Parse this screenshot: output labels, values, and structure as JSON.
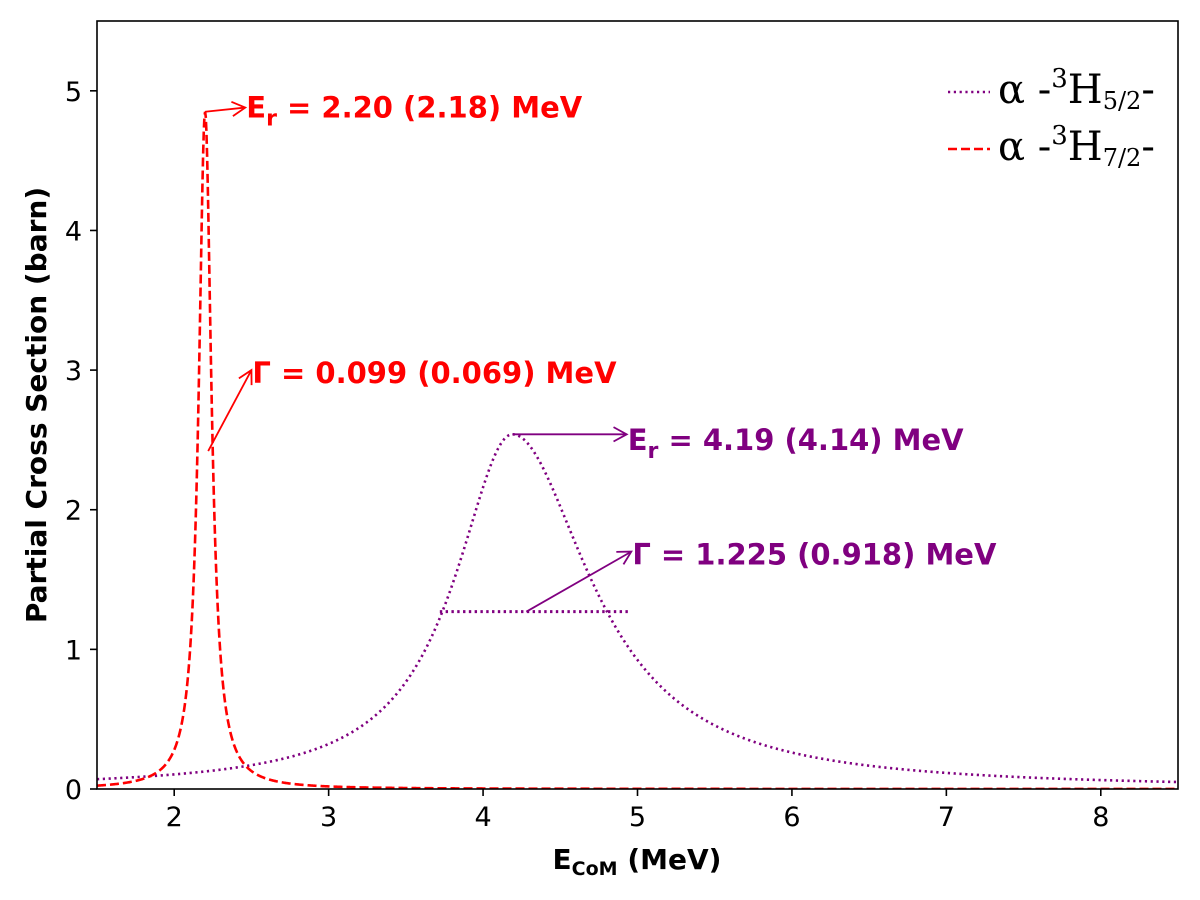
{
  "chart_data": {
    "type": "line",
    "xlabel_main": "E",
    "xlabel_sub": "CoM",
    "xlabel_unit": " (MeV)",
    "ylabel": "Partial Cross Section (barn)",
    "xlim": [
      1.5,
      8.5
    ],
    "ylim": [
      0,
      5.5
    ],
    "xticks": [
      2,
      3,
      4,
      5,
      6,
      7,
      8
    ],
    "yticks": [
      0,
      1,
      2,
      3,
      4,
      5
    ],
    "grid": false,
    "legend_position": "top-right",
    "series": [
      {
        "name": "α-3H5/2-",
        "legend": {
          "pre": "α -",
          "sup": "3",
          "base": "H",
          "sub": "5/2",
          "post": "-"
        },
        "color": "#800080",
        "style": "dotted",
        "model": "resonance",
        "peak_energy": 4.19,
        "peak_value": 2.54,
        "width": 1.225,
        "asymmetry": 1.35
      },
      {
        "name": "α-3H7/2-",
        "legend": {
          "pre": "α -",
          "sup": "3",
          "base": "H",
          "sub": "7/2",
          "post": "-"
        },
        "color": "#ff0000",
        "style": "dashed",
        "model": "resonance",
        "peak_energy": 2.2,
        "peak_value": 4.85,
        "width": 0.099,
        "asymmetry": 1.0
      }
    ],
    "half_max_line": {
      "x": [
        3.72,
        4.95
      ],
      "y": 1.27,
      "color": "#800080"
    },
    "annotations": [
      {
        "id": "er-red",
        "color": "#ff0000",
        "main": "E",
        "sub": "r",
        "text": " = 2.20 (2.18) MeV",
        "text_at": [
          2.46,
          4.88
        ],
        "arrow_from": [
          2.2,
          4.85
        ],
        "arrow_to": [
          2.46,
          4.88
        ]
      },
      {
        "id": "gamma-red",
        "color": "#ff0000",
        "main": "Γ",
        "sub": "",
        "text": " = 0.099 (0.069) MeV",
        "text_at": [
          2.5,
          2.98
        ],
        "arrow_from": [
          2.22,
          2.42
        ],
        "arrow_to": [
          2.5,
          3.0
        ]
      },
      {
        "id": "er-purple",
        "color": "#800080",
        "main": "E",
        "sub": "r",
        "text": " = 4.19 (4.14) MeV",
        "text_at": [
          4.93,
          2.5
        ],
        "arrow_from": [
          4.19,
          2.54
        ],
        "arrow_to": [
          4.93,
          2.54
        ]
      },
      {
        "id": "gamma-purple",
        "color": "#800080",
        "main": "Γ",
        "sub": "",
        "text": " = 1.225 (0.918) MeV",
        "text_at": [
          4.96,
          1.68
        ],
        "arrow_from": [
          4.28,
          1.27
        ],
        "arrow_to": [
          4.96,
          1.7
        ]
      }
    ]
  }
}
